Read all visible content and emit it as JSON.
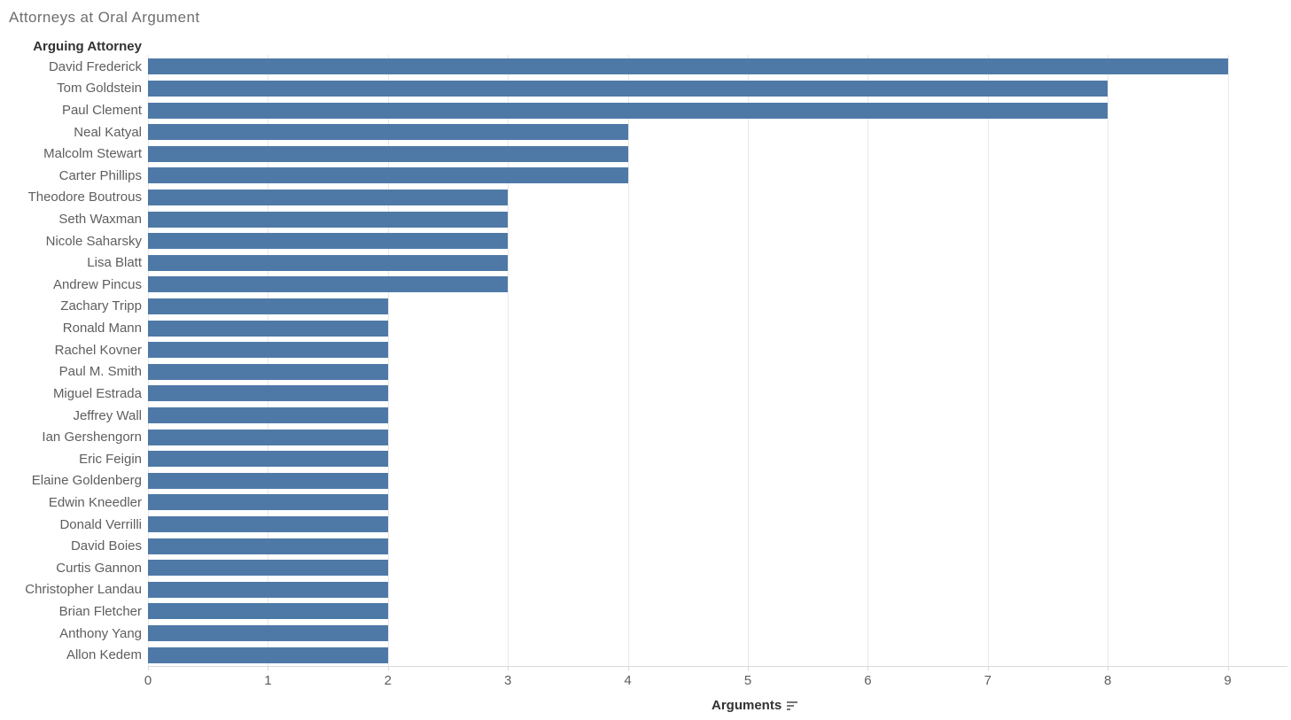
{
  "title": "Attorneys at Oral Argument",
  "row_header": "Arguing Attorney",
  "x_axis": {
    "label": "Arguments",
    "sort_icon": "sort-descending-icon",
    "tick_labels": [
      "0",
      "1",
      "2",
      "3",
      "4",
      "5",
      "6",
      "7",
      "8",
      "9"
    ]
  },
  "colors": {
    "bar": "#4e79a7",
    "gridline": "#e8e8e8",
    "axis_line": "#d9d9d9",
    "title_text": "#6e6e6e",
    "label_text": "#5e5e5e",
    "header_text": "#323232",
    "sort_icon": "#767676"
  },
  "chart_data": {
    "type": "bar",
    "orientation": "horizontal",
    "title": "Attorneys at Oral Argument",
    "xlabel": "Arguments",
    "ylabel": "Arguing Attorney",
    "xlim": [
      0,
      9.5
    ],
    "grid": true,
    "legend": false,
    "sort": "descending",
    "x_ticks": [
      0,
      1,
      2,
      3,
      4,
      5,
      6,
      7,
      8,
      9
    ],
    "categories": [
      "David Frederick",
      "Tom Goldstein",
      "Paul Clement",
      "Neal Katyal",
      "Malcolm Stewart",
      "Carter Phillips",
      "Theodore Boutrous",
      "Seth Waxman",
      "Nicole Saharsky",
      "Lisa Blatt",
      "Andrew Pincus",
      "Zachary Tripp",
      "Ronald Mann",
      "Rachel Kovner",
      "Paul M. Smith",
      "Miguel Estrada",
      "Jeffrey Wall",
      "Ian Gershengorn",
      "Eric Feigin",
      "Elaine Goldenberg",
      "Edwin Kneedler",
      "Donald Verrilli",
      "David Boies",
      "Curtis Gannon",
      "Christopher Landau",
      "Brian Fletcher",
      "Anthony Yang",
      "Allon Kedem"
    ],
    "values": [
      9,
      8,
      8,
      4,
      4,
      4,
      3,
      3,
      3,
      3,
      3,
      2,
      2,
      2,
      2,
      2,
      2,
      2,
      2,
      2,
      2,
      2,
      2,
      2,
      2,
      2,
      2,
      2
    ]
  }
}
